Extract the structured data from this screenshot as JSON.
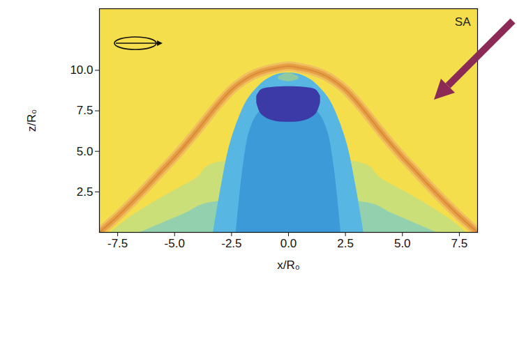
{
  "chart_data": {
    "type": "area",
    "x_label": "x/R₀",
    "y_label": "z/R₀",
    "annotations": [
      "SA"
    ],
    "xlim": [
      -8.3,
      8.3
    ],
    "ylim": [
      0,
      13.8
    ],
    "xticks": [
      -7.5,
      {
        "value": -5,
        "label": "-5.0"
      },
      -2.5,
      {
        "value": 0,
        "label": "0.0"
      },
      2.5,
      {
        "value": 5,
        "label": "5.0"
      },
      7.5
    ],
    "yticks": [
      2.5,
      {
        "value": 5,
        "label": "5.0"
      },
      7.5,
      {
        "value": 10,
        "label": "10.0"
      }
    ],
    "series": [
      {
        "type": "area",
        "color": "#cbdf78",
        "x": [
          -7.8,
          -7,
          -6,
          -5,
          -4,
          -3.4,
          3.4,
          4,
          5,
          6,
          7,
          7.8
        ],
        "values": [
          0,
          0.9,
          1.8,
          2.6,
          3.4,
          4.2,
          4.2,
          3.4,
          2.6,
          1.8,
          0.9,
          0
        ]
      },
      {
        "type": "area",
        "color": "#93d1ae",
        "x": [
          -6.5,
          -5.5,
          -4.5,
          -3.6,
          3.6,
          4.5,
          5.5,
          6.5
        ],
        "values": [
          0,
          0.6,
          1.2,
          1.8,
          1.8,
          1.2,
          0.6,
          0
        ]
      },
      {
        "type": "area",
        "color": "#58b6e2",
        "x": [
          -3.3,
          -3,
          -2.6,
          -2.2,
          -1.8,
          -1.4,
          -1,
          -0.5,
          0,
          0.5,
          1,
          1.4,
          1.8,
          2.2,
          2.6,
          3,
          3.3
        ],
        "values": [
          0,
          2.5,
          5.3,
          7.0,
          8.2,
          8.9,
          9.4,
          9.75,
          9.85,
          9.75,
          9.4,
          8.9,
          8.2,
          7.0,
          5.3,
          2.5,
          0
        ]
      },
      {
        "type": "area",
        "color": "#3d9ad8",
        "x": [
          -2.3,
          -2,
          -1.7,
          -1.3,
          -0.7,
          0,
          0.7,
          1.3,
          1.7,
          2,
          2.3
        ],
        "values": [
          0,
          4,
          6.3,
          7.4,
          7.9,
          8.0,
          7.9,
          7.4,
          6.3,
          4,
          0
        ]
      },
      {
        "type": "area",
        "color": "#3b3aa6",
        "x": [
          -1.4,
          -1.2,
          -0.7,
          0,
          0.7,
          1.2,
          1.4
        ],
        "values": [
          8.4,
          8.8,
          8.95,
          9.0,
          8.95,
          8.8,
          8.4
        ],
        "lower": [
          8.0,
          7.3,
          6.9,
          6.8,
          6.9,
          7.3,
          8.0
        ]
      },
      {
        "type": "area",
        "color": "#8fc9a2",
        "x": [
          -0.45,
          0,
          0.45
        ],
        "values": [
          9.6,
          9.85,
          9.6
        ],
        "lower": [
          9.45,
          9.3,
          9.45
        ]
      },
      {
        "type": "line",
        "color": "#e8a045",
        "x": [
          -8.3,
          -7.5,
          -6.5,
          -5.5,
          -5,
          -4.5,
          -4,
          -3.5,
          -3,
          -2.5,
          -2,
          -1.5,
          -1,
          -0.5,
          0,
          0.5,
          1,
          1.5,
          2,
          2.5,
          3,
          3.5,
          4,
          4.5,
          5,
          5.5,
          6.5,
          7.5,
          8.3
        ],
        "values": [
          0,
          1.0,
          2.4,
          3.9,
          4.65,
          5.45,
          6.3,
          7.2,
          8.05,
          8.8,
          9.35,
          9.75,
          10.0,
          10.15,
          10.25,
          10.15,
          10.0,
          9.75,
          9.35,
          8.8,
          8.05,
          7.2,
          6.3,
          5.45,
          4.65,
          3.9,
          2.4,
          1.0,
          0
        ]
      }
    ]
  }
}
